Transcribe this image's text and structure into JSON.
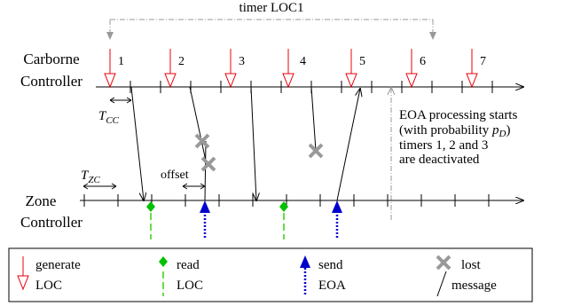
{
  "timer": {
    "label": "timer LOC1"
  },
  "carborne": {
    "label_line1": "Carborne",
    "label_line2": "Controller",
    "loc_numbers": [
      "1",
      "2",
      "3",
      "4",
      "5",
      "6",
      "7"
    ]
  },
  "zone": {
    "label_line1": "Zone",
    "label_line2": "Controller"
  },
  "annotations": {
    "tcc": "T",
    "tcc_sub": "CC",
    "tzc": "T",
    "tzc_sub": "ZC",
    "offset": "offset",
    "eoa_line1": "EOA processing starts",
    "eoa_line2_a": "(with probability ",
    "eoa_line2_p": "p",
    "eoa_line2_sub": "D",
    "eoa_line2_b": ")",
    "eoa_line3": "timers 1, 2 and 3",
    "eoa_line4": "are deactivated"
  },
  "legend": {
    "generate_line1": "generate",
    "generate_line2": "LOC",
    "read_line1": "read",
    "read_line2": "LOC",
    "send_line1": "send",
    "send_line2": "EOA",
    "lost_line1": "lost",
    "lost_line2": "message"
  },
  "colors": {
    "generate": "#e8000b",
    "read": "#00c000",
    "read_dash": "#66dd44",
    "send": "#0000cc",
    "lost": "#999999",
    "timer": "#999999",
    "line": "#000000"
  }
}
